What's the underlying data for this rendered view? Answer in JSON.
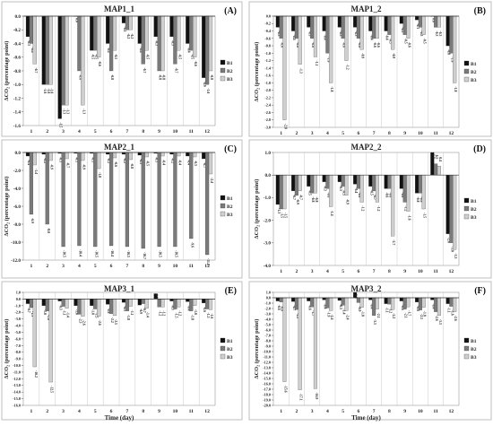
{
  "figure": {
    "days": [
      "1",
      "2",
      "3",
      "4",
      "5",
      "6",
      "7",
      "8",
      "9",
      "10",
      "11",
      "12"
    ],
    "series_names": [
      "B1",
      "B2",
      "B3"
    ],
    "colors": {
      "B1": "#111111",
      "B2": "#7a7a7a",
      "B3": "#cfcfcf"
    },
    "y_axis_title": "ΔCO₂ (percentage point)",
    "x_axis_title": "Time (day)"
  },
  "chart_data": [
    {
      "type": "bar",
      "panel": "(A)",
      "title": "MAP1_1",
      "categories": [
        "1",
        "2",
        "3",
        "4",
        "5",
        "6",
        "7",
        "8",
        "9",
        "10",
        "11",
        "12"
      ],
      "xlabel": "",
      "ylabel": "ΔCO₂ (percentage point)",
      "ylim": [
        -1.6,
        0.0
      ],
      "ytick_step": 0.2,
      "ytick_decimals": 1,
      "legend": "right",
      "grid": false,
      "series": [
        {
          "name": "B1",
          "values": [
            -0.3,
            -1.0,
            -1.5,
            0.0,
            -0.5,
            -0.4,
            -0.1,
            -0.4,
            -0.3,
            -0.3,
            -0.4,
            -0.9
          ]
        },
        {
          "name": "B2",
          "values": [
            -0.4,
            -1.0,
            -1.3,
            -0.8,
            -0.5,
            -0.8,
            -0.2,
            -0.7,
            -0.8,
            -0.7,
            -0.5,
            -1.0
          ]
        },
        {
          "name": "B3",
          "values": [
            -0.7,
            -1.0,
            -1.3,
            -1.3,
            -0.6,
            -0.5,
            -0.2,
            -0.5,
            -0.8,
            -0.5,
            -0.6,
            -0.8
          ]
        }
      ]
    },
    {
      "type": "bar",
      "panel": "(B)",
      "title": "MAP1_2",
      "categories": [
        "1",
        "2",
        "3",
        "4",
        "5",
        "6",
        "7",
        "8",
        "9",
        "10",
        "11",
        "12"
      ],
      "xlabel": "",
      "ylabel": "ΔCO₂ (percentage point)",
      "ylim": [
        -3.0,
        0.0
      ],
      "ytick_step": 0.2,
      "ytick_decimals": 1,
      "legend": "right",
      "grid": false,
      "series": [
        {
          "name": "B1",
          "values": [
            -0.3,
            -0.4,
            -0.3,
            -0.4,
            -0.3,
            -0.3,
            -0.4,
            -0.4,
            -0.2,
            -0.1,
            0.0,
            -0.8
          ]
        },
        {
          "name": "B2",
          "values": [
            -0.6,
            -0.6,
            -0.6,
            -1.0,
            -0.6,
            -0.6,
            -0.6,
            -0.5,
            -0.5,
            -0.3,
            -0.3,
            -1.0
          ]
        },
        {
          "name": "B3",
          "values": [
            -2.8,
            -1.3,
            -1.1,
            -1.8,
            -1.2,
            -0.9,
            -0.6,
            -0.9,
            -0.6,
            -0.5,
            -0.3,
            -1.8
          ]
        }
      ]
    },
    {
      "type": "bar",
      "panel": "(C)",
      "title": "MAP2_1",
      "categories": [
        "1",
        "2",
        "3",
        "4",
        "5",
        "6",
        "7",
        "8",
        "9",
        "10",
        "11",
        "12"
      ],
      "xlabel": "",
      "ylabel": "ΔCO₂ (percentage point)",
      "ylim": [
        -12.0,
        0.0
      ],
      "ytick_step": 2,
      "ytick_decimals": 1,
      "legend": "right",
      "grid": false,
      "series": [
        {
          "name": "B1",
          "values": [
            -0.4,
            -0.2,
            -0.1,
            -0.1,
            -0.1,
            -0.2,
            -0.2,
            -0.3,
            -0.1,
            -0.2,
            -0.4,
            -0.7
          ]
        },
        {
          "name": "B2",
          "values": [
            -6.9,
            -8.0,
            -10.5,
            -10.4,
            -10.5,
            -10.4,
            -10.5,
            -10.7,
            -10.5,
            -10.5,
            -9.6,
            -11.4
          ]
        },
        {
          "name": "B3",
          "values": [
            -1.4,
            -0.9,
            -0.7,
            -0.9,
            -1.8,
            -0.6,
            -0.8,
            -0.5,
            -0.4,
            -0.4,
            -0.5,
            -2.4
          ]
        }
      ]
    },
    {
      "type": "bar",
      "panel": "(D)",
      "title": "MAP2_2",
      "categories": [
        "1",
        "2",
        "3",
        "4",
        "5",
        "6",
        "7",
        "8",
        "9",
        "10",
        "11",
        "12"
      ],
      "xlabel": "",
      "ylabel": "ΔCO₂ (percentage point)",
      "ylim": [
        -4.0,
        1.0
      ],
      "ytick_step": 1,
      "ytick_decimals": 1,
      "legend": "right",
      "grid": false,
      "series": [
        {
          "name": "B1",
          "values": [
            -1.3,
            -0.7,
            -0.5,
            -0.3,
            -0.3,
            -0.4,
            -0.5,
            -0.6,
            -0.6,
            -0.8,
            1.0,
            -2.6
          ]
        },
        {
          "name": "B2",
          "values": [
            -1.5,
            -0.9,
            -0.8,
            -0.6,
            -0.5,
            -0.6,
            -0.7,
            -0.6,
            -1.2,
            -0.8,
            0.5,
            -3.0
          ]
        },
        {
          "name": "B3",
          "values": [
            -1.5,
            -0.7,
            -0.8,
            -1.4,
            -0.9,
            -1.2,
            -1.2,
            -2.7,
            -1.6,
            -1.5,
            0.4,
            -3.3
          ]
        }
      ]
    },
    {
      "type": "bar",
      "panel": "(E)",
      "title": "MAP3_1",
      "categories": [
        "1",
        "2",
        "3",
        "4",
        "5",
        "6",
        "7",
        "8",
        "9",
        "10",
        "11",
        "12"
      ],
      "xlabel": "Time (day)",
      "ylabel": "ΔCO₂ (percentage point)",
      "ylim": [
        -16.0,
        1.0
      ],
      "ytick_step": 1,
      "ytick_decimals": 1,
      "legend": "right",
      "grid": false,
      "series": [
        {
          "name": "B1",
          "values": [
            -0.7,
            -1.0,
            -0.3,
            -1.0,
            -1.0,
            -0.8,
            -0.5,
            -0.9,
            0.8,
            -0.3,
            -0.4,
            -0.6
          ]
        },
        {
          "name": "B2",
          "values": [
            -1.3,
            -1.8,
            -1.1,
            -2.3,
            -1.5,
            -2.2,
            -1.8,
            -0.7,
            -1.2,
            -1.5,
            -1.8,
            -1.5
          ]
        },
        {
          "name": "B3",
          "values": [
            -10.2,
            -12.5,
            -1.4,
            -2.6,
            -2.6,
            -2.5,
            -1.1,
            -1.4,
            -1.2,
            -1.2,
            -1.0,
            -1.6
          ]
        }
      ]
    },
    {
      "type": "bar",
      "panel": "(F)",
      "title": "MAP3_2",
      "categories": [
        "1",
        "2",
        "3",
        "4",
        "5",
        "6",
        "7",
        "8",
        "9",
        "10",
        "11",
        "12"
      ],
      "xlabel": "Time (day)",
      "ylabel": "ΔCO₂ (percentage point)",
      "ylim": [
        -20.0,
        1.0
      ],
      "ytick_step": 1,
      "ytick_decimals": 1,
      "legend": "right",
      "grid": false,
      "series": [
        {
          "name": "B1",
          "values": [
            -0.6,
            -0.7,
            -0.6,
            -0.4,
            -0.5,
            1.0,
            -0.4,
            -1.1,
            -0.6,
            -0.8,
            -0.4,
            -1.1
          ]
        },
        {
          "name": "B2",
          "values": [
            -0.8,
            -2.2,
            -1.7,
            -1.9,
            -1.4,
            -0.9,
            -3.3,
            -1.2,
            -2.1,
            -2.3,
            -2.6,
            -1.6
          ]
        },
        {
          "name": "B3",
          "values": [
            -15.6,
            -17.1,
            -16.9,
            -2.4,
            -2.4,
            -1.8,
            -2.1,
            -2.2,
            -1.7,
            -1.8,
            -3.3,
            -2.6
          ]
        }
      ]
    }
  ]
}
